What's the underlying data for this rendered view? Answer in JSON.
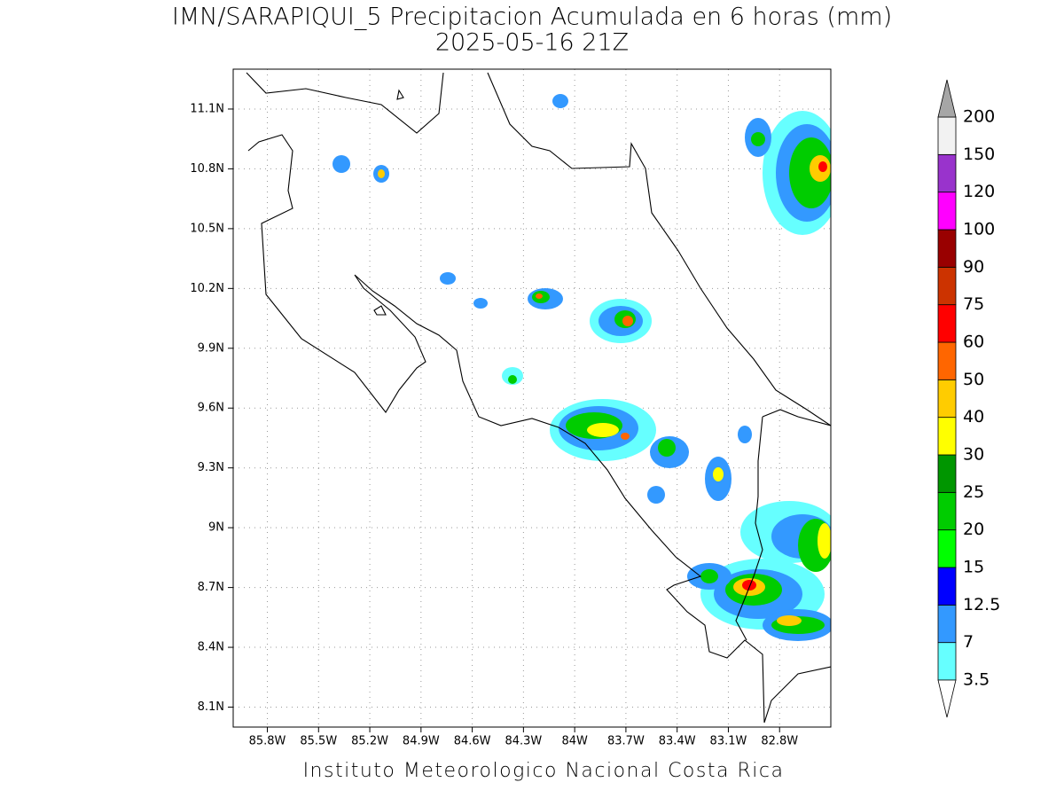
{
  "title": "IMN/SARAPIQUI_5 Precipitacion Acumulada en 6 horas (mm)",
  "subtitle": "2025-05-16 21Z",
  "footer": "Instituto Meteorologico Nacional Costa Rica",
  "map": {
    "lon_range": [
      -86,
      -82.5
    ],
    "lat_range": [
      8,
      11.3
    ],
    "lon_ticks": [
      {
        "value": -85.8,
        "label": "85.8W"
      },
      {
        "value": -85.5,
        "label": "85.5W"
      },
      {
        "value": -85.2,
        "label": "85.2W"
      },
      {
        "value": -84.9,
        "label": "84.9W"
      },
      {
        "value": -84.6,
        "label": "84.6W"
      },
      {
        "value": -84.3,
        "label": "84.3W"
      },
      {
        "value": -84,
        "label": "84W"
      },
      {
        "value": -83.7,
        "label": "83.7W"
      },
      {
        "value": -83.4,
        "label": "83.4W"
      },
      {
        "value": -83.1,
        "label": "83.1W"
      },
      {
        "value": -82.8,
        "label": "82.8W"
      }
    ],
    "lat_ticks": [
      {
        "value": 8.1,
        "label": "8.1N"
      },
      {
        "value": 8.4,
        "label": "8.4N"
      },
      {
        "value": 8.7,
        "label": "8.7N"
      },
      {
        "value": 9,
        "label": "9N"
      },
      {
        "value": 9.3,
        "label": "9.3N"
      },
      {
        "value": 9.6,
        "label": "9.6N"
      },
      {
        "value": 9.9,
        "label": "9.9N"
      },
      {
        "value": 10.2,
        "label": "10.2N"
      },
      {
        "value": 10.5,
        "label": "10.5N"
      },
      {
        "value": 10.8,
        "label": "10.8N"
      },
      {
        "value": 11.1,
        "label": "11.1N"
      }
    ]
  },
  "colorbar": {
    "levels": [
      3.5,
      7,
      12.5,
      15,
      20,
      25,
      30,
      40,
      50,
      60,
      75,
      90,
      100,
      120,
      150,
      200
    ],
    "colors": [
      "#66ffff",
      "#3399ff",
      "#0000ff",
      "#00ff00",
      "#00cc00",
      "#009600",
      "#ffff00",
      "#ffcc00",
      "#ff6600",
      "#ff0000",
      "#cc3300",
      "#990000",
      "#ff00ff",
      "#9933cc",
      "#f2f2f2"
    ],
    "under_color": "#ffffff",
    "over_color": "#a6a6a6"
  }
}
